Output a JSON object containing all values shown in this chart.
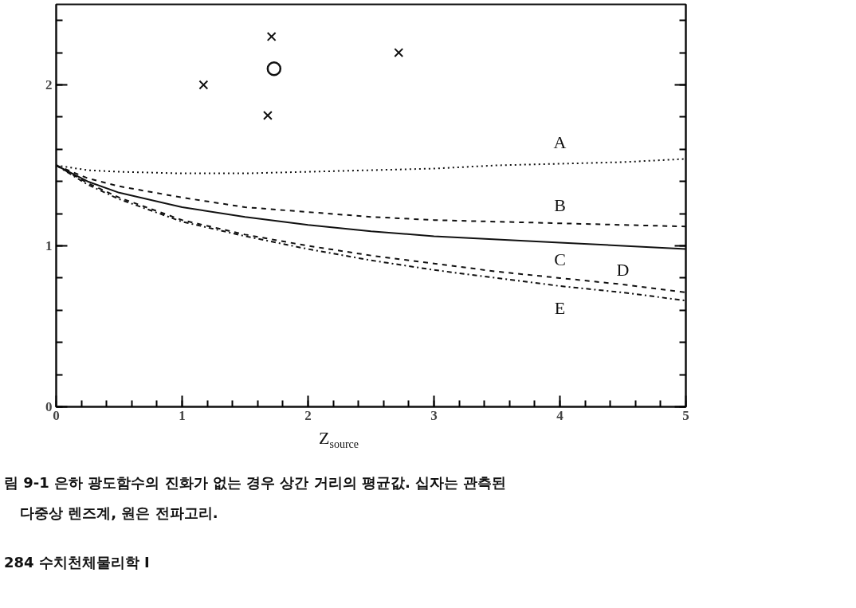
{
  "chart_data": {
    "type": "line",
    "xlabel": "Z$_{source}$",
    "x": [
      0,
      0.25,
      0.5,
      1,
      1.5,
      2,
      2.5,
      3,
      3.5,
      4,
      4.5,
      5
    ],
    "series": [
      {
        "name": "A",
        "color": "#111111",
        "line_style": "dotted",
        "values": [
          1.5,
          1.47,
          1.46,
          1.45,
          1.45,
          1.46,
          1.47,
          1.48,
          1.5,
          1.51,
          1.52,
          1.54
        ]
      },
      {
        "name": "B",
        "color": "#111111",
        "line_style": "dashed",
        "values": [
          1.5,
          1.42,
          1.37,
          1.3,
          1.24,
          1.21,
          1.18,
          1.16,
          1.15,
          1.14,
          1.13,
          1.12
        ]
      },
      {
        "name": "C",
        "color": "#111111",
        "line_style": "solid",
        "values": [
          1.5,
          1.4,
          1.33,
          1.24,
          1.18,
          1.13,
          1.09,
          1.06,
          1.04,
          1.02,
          1.0,
          0.98
        ]
      },
      {
        "name": "D",
        "color": "#111111",
        "line_style": "dashed",
        "values": [
          1.5,
          1.39,
          1.3,
          1.16,
          1.07,
          1.0,
          0.94,
          0.89,
          0.84,
          0.8,
          0.76,
          0.71
        ]
      },
      {
        "name": "E",
        "color": "#111111",
        "line_style": "dashdot",
        "values": [
          1.5,
          1.38,
          1.29,
          1.15,
          1.06,
          0.98,
          0.91,
          0.85,
          0.8,
          0.75,
          0.71,
          0.66
        ]
      },
      {
        "type": "scatter",
        "marker": "cross",
        "color": "#111111",
        "x": [
          1.17,
          1.71,
          1.68,
          2.72
        ],
        "values": [
          2.0,
          2.3,
          1.81,
          2.2
        ]
      },
      {
        "type": "scatter",
        "marker": "circle",
        "color": "#111111",
        "x": [
          1.73
        ],
        "values": [
          2.1
        ]
      }
    ],
    "xlim": [
      0,
      5
    ],
    "ylim": [
      0,
      2.5
    ],
    "xticks": [
      0,
      1,
      2,
      3,
      4,
      5
    ],
    "yticks": [
      0,
      1,
      2
    ],
    "grid": false,
    "legend": false,
    "annotations": [
      "림 9-1  은하 광도함수의 진화가 없는 경우 상간 거리의 평균값. 십자는 관측된",
      "다중상 렌즈계, 원은 전파고리.",
      "284  수치천체물리학 I"
    ]
  }
}
